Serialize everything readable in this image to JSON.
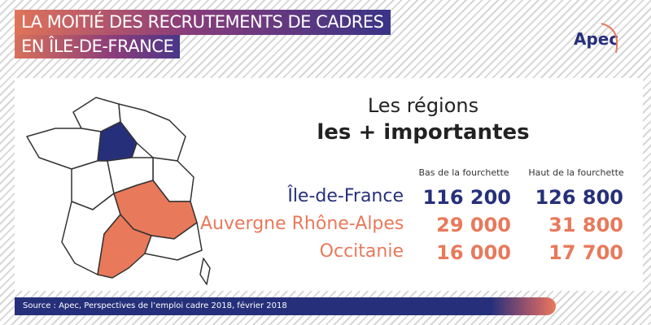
{
  "header": {
    "title_lines": [
      "LA MOITIÉ DES RECRUTEMENTS DE CADRES",
      "EN ÎLE-DE-FRANCE"
    ],
    "logo": "Apec"
  },
  "heading": {
    "line1": "Les régions",
    "line2": "les + importantes"
  },
  "table": {
    "columns": [
      "Bas de la fourchette",
      "Haut de la fourchette"
    ],
    "rows": [
      [
        "Île-de-France",
        "116 200",
        "126 800"
      ],
      [
        "Auvergne Rhône-Alpes",
        "29 000",
        "31 800"
      ],
      [
        "Occitanie",
        "16 000",
        "17 700"
      ]
    ]
  },
  "footer": {
    "source": "Source : Apec, Perspectives de l’emploi cadre 2018, février 2018"
  }
}
